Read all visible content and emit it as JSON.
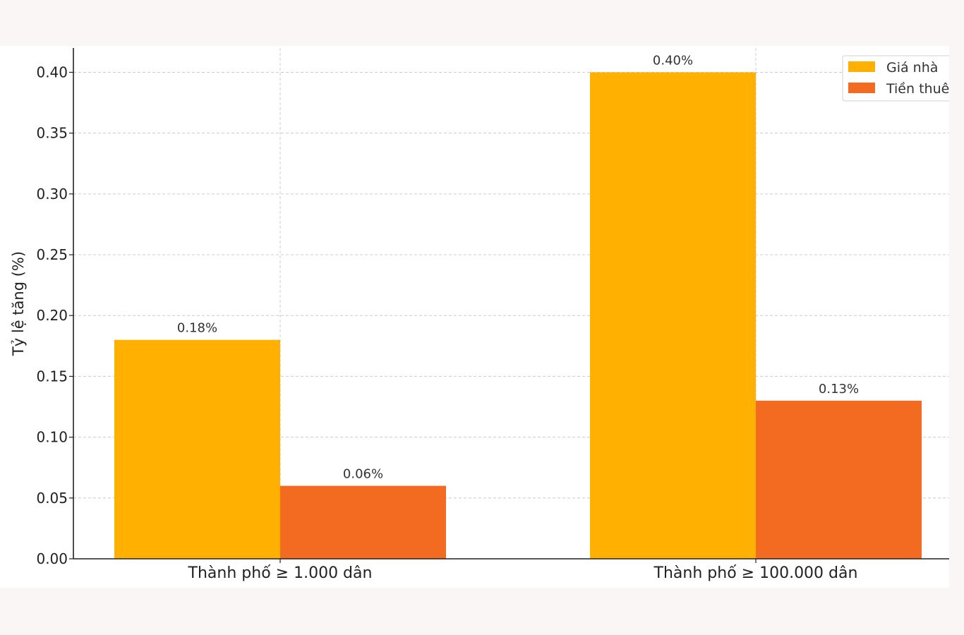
{
  "chart_data": {
    "type": "bar",
    "categories": [
      "Thành phố ≥ 1.000 dân",
      "Thành phố ≥ 100.000 dân"
    ],
    "series": [
      {
        "name": "Giá nhà",
        "values": [
          0.18,
          0.4
        ],
        "color": "#FFB000"
      },
      {
        "name": "Tiền thuê",
        "values": [
          0.06,
          0.13
        ],
        "color": "#F26B21"
      }
    ],
    "value_labels": [
      [
        "0.18%",
        "0.40%"
      ],
      [
        "0.06%",
        "0.13%"
      ]
    ],
    "ylabel": "Tỷ lệ tăng (%)",
    "ylim": [
      0,
      0.42
    ],
    "yticks": [
      "0.00",
      "0.05",
      "0.10",
      "0.15",
      "0.20",
      "0.25",
      "0.30",
      "0.35",
      "0.40"
    ],
    "ytick_values": [
      0,
      0.05,
      0.1,
      0.15,
      0.2,
      0.25,
      0.3,
      0.35,
      0.4
    ],
    "grid": true,
    "legend_position": "top-right"
  }
}
